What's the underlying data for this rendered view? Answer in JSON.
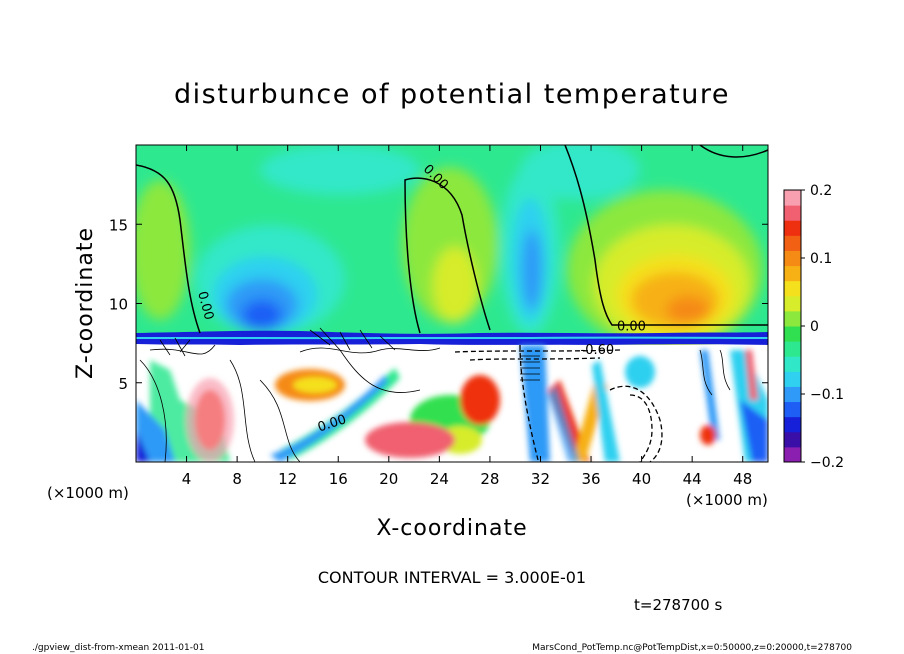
{
  "chart_data": {
    "type": "heatmap",
    "title": "disturbunce of potential temperature",
    "xlabel": "X-coordinate",
    "ylabel": "Z-coordinate",
    "x_unit_label": "(×1000 m)",
    "y_unit_label": "(×1000 m)",
    "xlim": [
      0,
      50
    ],
    "ylim": [
      0,
      20
    ],
    "x_ticks": [
      4,
      8,
      12,
      16,
      20,
      24,
      28,
      32,
      36,
      40,
      44,
      48
    ],
    "y_ticks": [
      5,
      10,
      15
    ],
    "colorbar": {
      "min": -0.2,
      "max": 0.2,
      "ticks": [
        "0.2",
        "0.1",
        "0",
        "−0.1",
        "−0.2"
      ],
      "tick_values": [
        0.2,
        0.1,
        0,
        -0.1,
        -0.2
      ],
      "colors": [
        "#8a1fb0",
        "#3a0fa8",
        "#1620d8",
        "#1f5ef5",
        "#2f9af7",
        "#2fd0f0",
        "#30e8c8",
        "#2ee890",
        "#30e050",
        "#8ce83c",
        "#d7ec2a",
        "#f5e01e",
        "#f7b114",
        "#f58a14",
        "#f26014",
        "#ef3010",
        "#f06070",
        "#f8a0b0"
      ]
    },
    "contour_labels": [
      "0.00",
      "0.00",
      "0.00",
      "0.00",
      "-0.60"
    ],
    "contour_interval_text": "CONTOUR INTERVAL = 3.000E-01",
    "time_text": "t=278700 s"
  },
  "footer": {
    "left": "./gpview_dist-from-xmean  2011-01-01",
    "right": "MarsCond_PotTemp.nc@PotTempDist,x=0:50000,z=0:20000,t=278700"
  }
}
